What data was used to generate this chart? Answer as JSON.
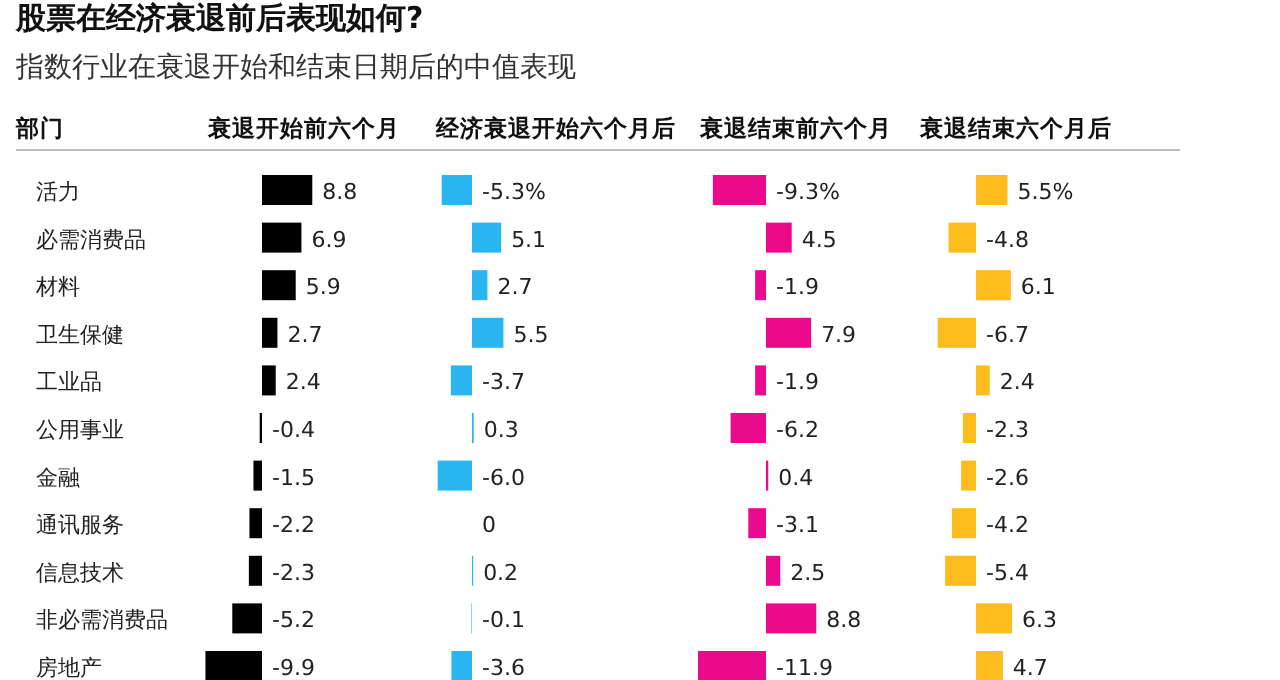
{
  "chart_data": [
    {
      "type": "other",
      "title": "股票在经济衰退前后表现如何?",
      "subtitle": "指数行业在衰退开始和结束日期后的中值表现"
    },
    {
      "type": "bar",
      "orientation": "horizontal",
      "title": "衰退开始前六个月",
      "ylabel": "部门",
      "color": "#000000",
      "categories": [
        "活力",
        "必需消费品",
        "材料",
        "卫生保健",
        "工业品",
        "公用事业",
        "金融",
        "通讯服务",
        "信息技术",
        "非必需消费品",
        "房地产"
      ],
      "values": [
        8.8,
        6.9,
        5.9,
        2.7,
        2.4,
        -0.4,
        -1.5,
        -2.2,
        -2.3,
        -5.2,
        -9.9
      ],
      "value_labels": [
        "8.8",
        "6.9",
        "5.9",
        "2.7",
        "2.4",
        "-0.4",
        "-1.5",
        "-2.2",
        "-2.3",
        "-5.2",
        "-9.9"
      ]
    },
    {
      "type": "bar",
      "orientation": "horizontal",
      "title": "经济衰退开始六个月后",
      "color": "#29b6f0",
      "values": [
        -5.3,
        5.1,
        2.7,
        5.5,
        -3.7,
        0.3,
        -6.0,
        0,
        0.2,
        -0.1,
        -3.6
      ],
      "value_labels": [
        "-5.3%",
        "5.1",
        "2.7",
        "5.5",
        "-3.7",
        "0.3",
        "-6.0",
        "0",
        "0.2",
        "-0.1",
        "-3.6"
      ]
    },
    {
      "type": "bar",
      "orientation": "horizontal",
      "title": "衰退结束前六个月",
      "color": "#ec0a8c",
      "values": [
        -9.3,
        4.5,
        -1.9,
        7.9,
        -1.9,
        -6.2,
        0.4,
        -3.1,
        2.5,
        8.8,
        -11.9
      ],
      "value_labels": [
        "-9.3%",
        "4.5",
        "-1.9",
        "7.9",
        "-1.9",
        "-6.2",
        "0.4",
        "-3.1",
        "2.5",
        "8.8",
        "-11.9"
      ]
    },
    {
      "type": "bar",
      "orientation": "horizontal",
      "title": "衰退结束六个月后",
      "color": "#fbbc1c",
      "values": [
        5.5,
        -4.8,
        6.1,
        -6.7,
        2.4,
        -2.3,
        -2.6,
        -4.2,
        -5.4,
        6.3,
        4.7
      ],
      "value_labels": [
        "5.5%",
        "-4.8",
        "6.1",
        "-6.7",
        "2.4",
        "-2.3",
        "-2.6",
        "-4.2",
        "-5.4",
        "6.3",
        "4.7"
      ]
    }
  ]
}
